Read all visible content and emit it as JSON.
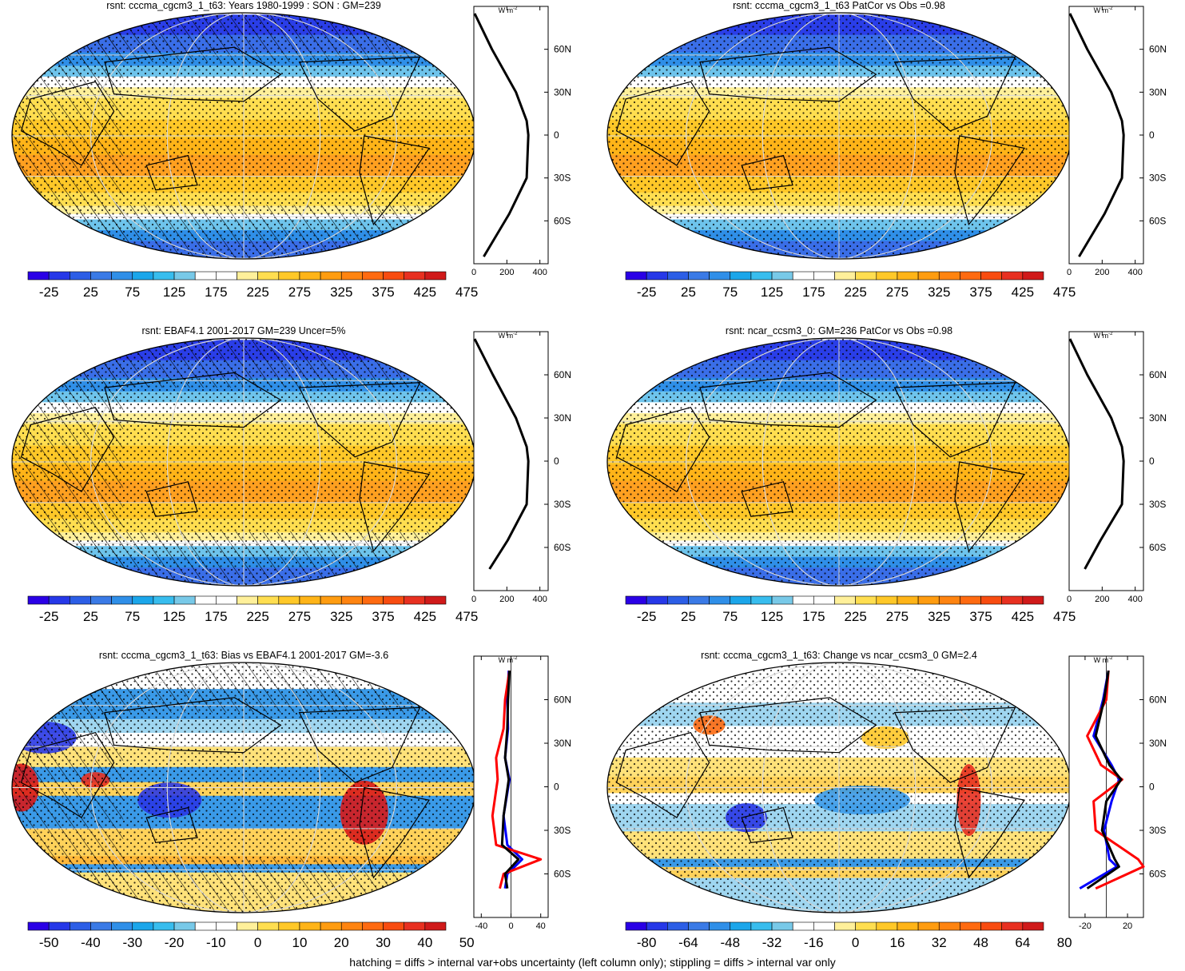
{
  "footer": "hatching = diffs > internal var+obs uncertainty (left column only); stippling = diffs > internal var only",
  "profile_unit": "W m",
  "profile_unit_exp": "-2",
  "lat_ticks": [
    "60N",
    "30N",
    "0",
    "30S",
    "60S"
  ],
  "lat_values": [
    60,
    30,
    0,
    -30,
    -60
  ],
  "colors": {
    "profile_series": [
      "#0000ff",
      "#ff0000",
      "#000000"
    ],
    "mean_palette": [
      "#2a00e6",
      "#2638e8",
      "#2c5ee6",
      "#3a7ae6",
      "#2f8fe8",
      "#1ba6ea",
      "#38bdee",
      "#78c9e8",
      "#ffffff",
      "#ffffff",
      "#fff09a",
      "#ffde50",
      "#ffc828",
      "#ffb418",
      "#ff9c10",
      "#ff8410",
      "#ff6a10",
      "#f84c10",
      "#e83020",
      "#d01a1a"
    ],
    "bias_palette": [
      "#2a00e6",
      "#2638e8",
      "#2c5ee6",
      "#3a7ae6",
      "#2f8fe8",
      "#1ba6ea",
      "#38bdee",
      "#78c9e8",
      "#ffffff",
      "#ffffff",
      "#fff09a",
      "#ffde50",
      "#ffc828",
      "#ffb418",
      "#ff9c10",
      "#ff8410",
      "#ff6a10",
      "#f84c10",
      "#e83020",
      "#d01a1a"
    ]
  },
  "panels": [
    {
      "id": "a",
      "title": "rsnt: cccma_cgcm3_1_t63: Years 1980-1999 : SON : GM=239",
      "kind": "mean",
      "hatched": true,
      "colorbar_labels": [
        "-25",
        "25",
        "75",
        "125",
        "175",
        "225",
        "275",
        "325",
        "375",
        "425",
        "475"
      ],
      "profile_xticks": [
        "0",
        "200",
        "400"
      ],
      "profile_xlim": [
        0,
        450
      ]
    },
    {
      "id": "b",
      "title": "rsnt: cccma_cgcm3_1_t63 PatCor vs Obs =0.98",
      "kind": "mean",
      "hatched": false,
      "colorbar_labels": [
        "-25",
        "25",
        "75",
        "125",
        "175",
        "225",
        "275",
        "325",
        "375",
        "425",
        "475"
      ],
      "profile_xticks": [
        "0",
        "200",
        "400"
      ],
      "profile_xlim": [
        0,
        450
      ]
    },
    {
      "id": "c",
      "title": "rsnt: EBAF4.1 2001-2017 GM=239 Uncer=5%",
      "kind": "mean",
      "hatched": true,
      "colorbar_labels": [
        "-25",
        "25",
        "75",
        "125",
        "175",
        "225",
        "275",
        "325",
        "375",
        "425",
        "475"
      ],
      "profile_xticks": [
        "0",
        "200",
        "400"
      ],
      "profile_xlim": [
        0,
        450
      ]
    },
    {
      "id": "d",
      "title": "rsnt: ncar_ccsm3_0: GM=236 PatCor vs Obs =0.98",
      "kind": "mean",
      "hatched": false,
      "colorbar_labels": [
        "-25",
        "25",
        "75",
        "125",
        "175",
        "225",
        "275",
        "325",
        "375",
        "425",
        "475"
      ],
      "profile_xticks": [
        "0",
        "200",
        "400"
      ],
      "profile_xlim": [
        0,
        450
      ]
    },
    {
      "id": "e",
      "title": "rsnt: cccma_cgcm3_1_t63: Bias vs EBAF4.1 2001-2017  GM=-3.6",
      "kind": "bias",
      "hatched": true,
      "colorbar_labels": [
        "-50",
        "-40",
        "-30",
        "-20",
        "-10",
        "0",
        "10",
        "20",
        "30",
        "40",
        "50"
      ],
      "profile_xticks": [
        "-40",
        "0",
        "40"
      ],
      "profile_xlim": [
        -50,
        50
      ]
    },
    {
      "id": "f",
      "title": "rsnt: cccma_cgcm3_1_t63: Change vs ncar_ccsm3_0 GM=2.4",
      "kind": "change",
      "hatched": false,
      "colorbar_labels": [
        "-80",
        "-64",
        "-48",
        "-32",
        "-16",
        "0",
        "16",
        "32",
        "48",
        "64",
        "80"
      ],
      "profile_xticks": [
        "-20",
        "20"
      ],
      "profile_xlim": [
        -35,
        35
      ]
    }
  ],
  "chart_data": [
    {
      "type": "heatmap",
      "title": "rsnt: cccma_cgcm3_1_t63: Years 1980-1999 : SON : GM=239",
      "colorbar": [
        -25,
        25,
        75,
        125,
        175,
        225,
        275,
        325,
        375,
        425,
        475
      ],
      "zonal_mean_profile": {
        "lat": [
          85,
          60,
          30,
          10,
          0,
          -30,
          -55,
          -85
        ],
        "series": [
          {
            "values": [
              5,
              110,
              255,
              320,
              330,
              320,
              215,
              60
            ]
          }
        ]
      }
    },
    {
      "type": "heatmap",
      "title": "rsnt: cccma_cgcm3_1_t63 PatCor vs Obs =0.98",
      "colorbar": [
        -25,
        25,
        75,
        125,
        175,
        225,
        275,
        325,
        375,
        425,
        475
      ],
      "zonal_mean_profile": {
        "lat": [
          85,
          60,
          30,
          10,
          0,
          -30,
          -55,
          -85
        ],
        "series": [
          {
            "values": [
              5,
              110,
              255,
              320,
              330,
              320,
              215,
              60
            ]
          }
        ]
      }
    },
    {
      "type": "heatmap",
      "title": "rsnt: EBAF4.1 2001-2017 GM=239 Uncer=5%",
      "colorbar": [
        -25,
        25,
        75,
        125,
        175,
        225,
        275,
        325,
        375,
        425,
        475
      ],
      "zonal_mean_profile": {
        "lat": [
          85,
          60,
          30,
          10,
          0,
          -30,
          -55,
          -75
        ],
        "series": [
          {
            "values": [
              5,
              115,
              255,
              320,
              330,
              320,
              205,
              95
            ]
          }
        ]
      }
    },
    {
      "type": "heatmap",
      "title": "rsnt: ncar_ccsm3_0: GM=236 PatCor vs Obs =0.98",
      "colorbar": [
        -25,
        25,
        75,
        125,
        175,
        225,
        275,
        325,
        375,
        425,
        475
      ],
      "zonal_mean_profile": {
        "lat": [
          85,
          60,
          30,
          10,
          0,
          -30,
          -55,
          -75
        ],
        "series": [
          {
            "values": [
              5,
              110,
              255,
              320,
              330,
              320,
              190,
              95
            ]
          }
        ]
      }
    },
    {
      "type": "heatmap",
      "title": "rsnt: cccma_cgcm3_1_t63: Bias vs EBAF4.1 2001-2017  GM=-3.6",
      "colorbar": [
        -50,
        -40,
        -30,
        -20,
        -10,
        0,
        10,
        20,
        30,
        40,
        50
      ],
      "zonal_mean_profile": {
        "lat": [
          80,
          60,
          40,
          20,
          5,
          -20,
          -40,
          -50,
          -60,
          -70
        ],
        "series": [
          {
            "values": [
              -3,
              -5,
              -4,
              -8,
              -2,
              -10,
              -5,
              15,
              -5,
              -8
            ]
          },
          {
            "values": [
              -2,
              -8,
              -10,
              -20,
              -18,
              -25,
              -20,
              40,
              -10,
              -15
            ]
          },
          {
            "values": [
              -2,
              -4,
              -5,
              -8,
              -3,
              -10,
              -12,
              10,
              -8,
              -5
            ]
          }
        ]
      }
    },
    {
      "type": "heatmap",
      "title": "rsnt: cccma_cgcm3_1_t63: Change vs ncar_ccsm3_0 GM=2.4",
      "colorbar": [
        -80,
        -64,
        -48,
        -32,
        -16,
        0,
        16,
        32,
        48,
        64,
        80
      ],
      "zonal_mean_profile": {
        "lat": [
          80,
          60,
          35,
          15,
          5,
          -10,
          -30,
          -50,
          -55,
          -70
        ],
        "series": [
          {
            "values": [
              2,
              -3,
              -12,
              5,
              12,
              5,
              -2,
              3,
              10,
              -25
            ]
          },
          {
            "values": [
              2,
              0,
              -18,
              -5,
              15,
              -12,
              -10,
              30,
              35,
              -10
            ]
          },
          {
            "values": [
              2,
              -2,
              -10,
              3,
              14,
              0,
              -4,
              8,
              12,
              -18
            ]
          }
        ]
      }
    }
  ]
}
